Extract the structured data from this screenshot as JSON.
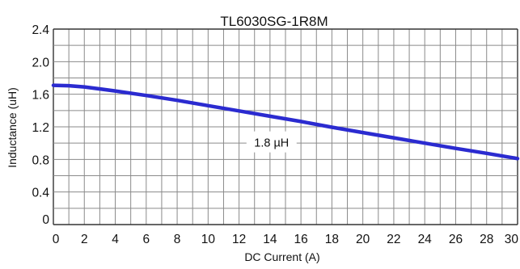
{
  "chart_data": {
    "type": "line",
    "title": "TL6030SG-1R8M",
    "xlabel": "DC Current (A)",
    "ylabel": "Inductance (uH)",
    "xlim": [
      0,
      30
    ],
    "ylim": [
      0,
      2.4
    ],
    "x_ticks": [
      "0",
      "2",
      "4",
      "6",
      "8",
      "10",
      "12",
      "14",
      "16",
      "18",
      "20",
      "22",
      "24",
      "26",
      "28",
      "30"
    ],
    "y_ticks": [
      "2.4",
      "2.0",
      "1.6",
      "1.2",
      "0.8",
      "0.4",
      "0"
    ],
    "grid": true,
    "series": [
      {
        "name": "1.8 µH",
        "color": "#2b2bd0",
        "x": [
          0,
          1,
          2,
          4,
          6,
          8,
          10,
          12,
          14,
          16,
          18,
          20,
          22,
          24,
          26,
          28,
          30
        ],
        "y": [
          1.71,
          1.705,
          1.69,
          1.64,
          1.585,
          1.525,
          1.46,
          1.395,
          1.33,
          1.265,
          1.195,
          1.13,
          1.065,
          1.0,
          0.935,
          0.875,
          0.81
        ]
      }
    ]
  }
}
